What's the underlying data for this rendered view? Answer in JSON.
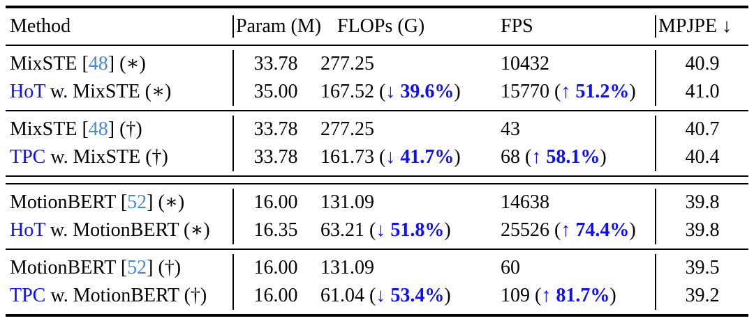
{
  "table": {
    "colors": {
      "accent_blue": "#0d0dff",
      "citation_blue": "#4789cf"
    },
    "header": {
      "method": "Method",
      "param": "Param (M)",
      "flops": "FLOPs (G)",
      "fps": "FPS",
      "mpjpe": "MPJPE ↓"
    },
    "groups": [
      {
        "rows": [
          {
            "method": {
              "pre": "MixSTE [",
              "cite": "48",
              "post": "] (∗)"
            },
            "param": "33.78",
            "flops": {
              "main": "277.25"
            },
            "fps": {
              "main": "10432"
            },
            "mpjpe": "40.9"
          },
          {
            "method": {
              "acc": "HoT",
              "post": " w. MixSTE (∗)"
            },
            "param": "35.00",
            "flops": {
              "main": "167.52",
              "open": " (",
              "arrow": "↓ ",
              "pct": "39.6%",
              "close": ")"
            },
            "fps": {
              "main": "15770",
              "open": " (",
              "arrow": "↑ ",
              "pct": "51.2%",
              "close": ")"
            },
            "mpjpe": "41.0"
          }
        ]
      },
      {
        "rows": [
          {
            "method": {
              "pre": "MixSTE [",
              "cite": "48",
              "post": "] (†)"
            },
            "param": "33.78",
            "flops": {
              "main": "277.25"
            },
            "fps": {
              "main": "43"
            },
            "mpjpe": "40.7"
          },
          {
            "method": {
              "acc": "TPC",
              "post": " w. MixSTE (†)"
            },
            "param": "33.78",
            "flops": {
              "main": "161.73",
              "open": " (",
              "arrow": "↓ ",
              "pct": "41.7%",
              "close": ")"
            },
            "fps": {
              "main": "68",
              "open": " (",
              "arrow": "↑ ",
              "pct": "58.1%",
              "close": ")"
            },
            "mpjpe": "40.4"
          }
        ]
      },
      {
        "rows": [
          {
            "method": {
              "pre": "MotionBERT [",
              "cite": "52",
              "post": "] (∗)"
            },
            "param": "16.00",
            "flops": {
              "main": "131.09"
            },
            "fps": {
              "main": "14638"
            },
            "mpjpe": "39.8"
          },
          {
            "method": {
              "acc": "HoT",
              "post": " w. MotionBERT (∗)"
            },
            "param": "16.35",
            "flops": {
              "main": "63.21",
              "open": " (",
              "arrow": "↓ ",
              "pct": "51.8%",
              "close": ")"
            },
            "fps": {
              "main": "25526",
              "open": " (",
              "arrow": "↑ ",
              "pct": "74.4%",
              "close": ")"
            },
            "mpjpe": "39.8"
          }
        ]
      },
      {
        "rows": [
          {
            "method": {
              "pre": "MotionBERT [",
              "cite": "52",
              "post": "] (†)"
            },
            "param": "16.00",
            "flops": {
              "main": "131.09"
            },
            "fps": {
              "main": "60"
            },
            "mpjpe": "39.5"
          },
          {
            "method": {
              "acc": "TPC",
              "post": " w. MotionBERT (†)"
            },
            "param": "16.00",
            "flops": {
              "main": "61.04",
              "open": " (",
              "arrow": "↓ ",
              "pct": "53.4%",
              "close": ")"
            },
            "fps": {
              "main": "109",
              "open": " (",
              "arrow": "↑ ",
              "pct": "81.7%",
              "close": ")"
            },
            "mpjpe": "39.2"
          }
        ]
      }
    ]
  }
}
